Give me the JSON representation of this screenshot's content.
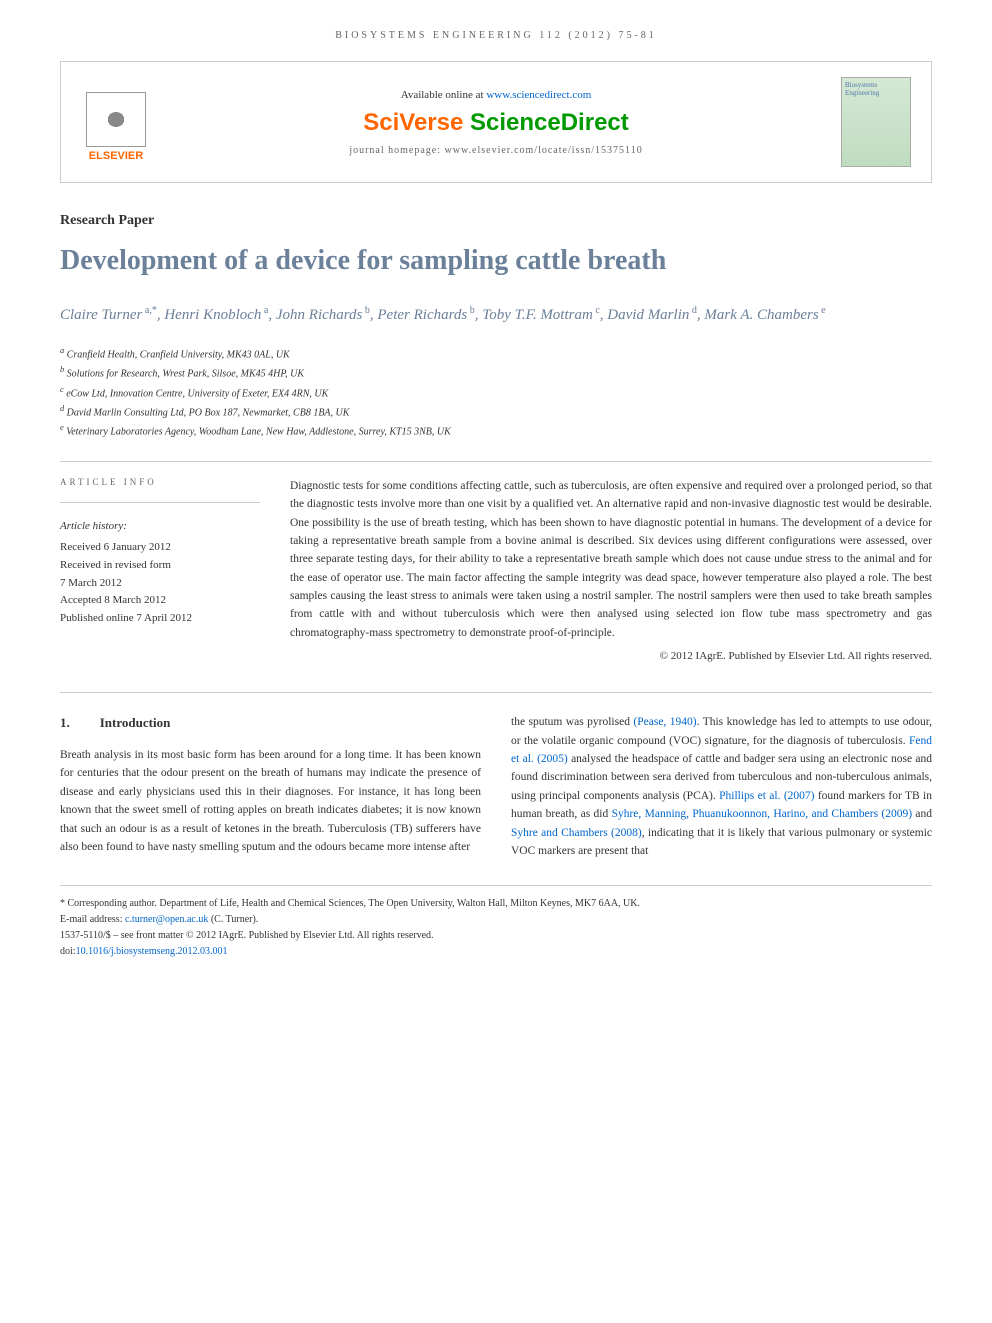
{
  "journal_info": "BIOSYSTEMS ENGINEERING 112 (2012) 75-81",
  "header": {
    "available_text": "Available online at ",
    "sd_url": "www.sciencedirect.com",
    "sciverse": "SciVerse ",
    "sciencedirect": "ScienceDirect",
    "homepage_label": "journal homepage: ",
    "homepage_url": "www.elsevier.com/locate/issn/15375110",
    "elsevier": "ELSEVIER",
    "cover_title": "Biosystems Engineering"
  },
  "article_type": "Research Paper",
  "title": "Development of a device for sampling cattle breath",
  "authors_html": "Claire Turner<sup> a,*</sup>, Henri Knobloch<sup> a</sup>, John Richards<sup> b</sup>, Peter Richards<sup> b</sup>, Toby T.F. Mottram<sup> c</sup>, David Marlin<sup> d</sup>, Mark A. Chambers<sup> e</sup>",
  "affiliations": [
    "a Cranfield Health, Cranfield University, MK43 0AL, UK",
    "b Solutions for Research, Wrest Park, Silsoe, MK45 4HP, UK",
    "c eCow Ltd, Innovation Centre, University of Exeter, EX4 4RN, UK",
    "d David Marlin Consulting Ltd, PO Box 187, Newmarket, CB8 1BA, UK",
    "e Veterinary Laboratories Agency, Woodham Lane, New Haw, Addlestone, Surrey, KT15 3NB, UK"
  ],
  "info_heading": "ARTICLE INFO",
  "history": {
    "title": "Article history:",
    "lines": [
      "Received 6 January 2012",
      "Received in revised form",
      "7 March 2012",
      "Accepted 8 March 2012",
      "Published online 7 April 2012"
    ]
  },
  "abstract": "Diagnostic tests for some conditions affecting cattle, such as tuberculosis, are often expensive and required over a prolonged period, so that the diagnostic tests involve more than one visit by a qualified vet. An alternative rapid and non-invasive diagnostic test would be desirable. One possibility is the use of breath testing, which has been shown to have diagnostic potential in humans. The development of a device for taking a representative breath sample from a bovine animal is described. Six devices using different configurations were assessed, over three separate testing days, for their ability to take a representative breath sample which does not cause undue stress to the animal and for the ease of operator use. The main factor affecting the sample integrity was dead space, however temperature also played a role. The best samples causing the least stress to animals were taken using a nostril sampler. The nostril samplers were then used to take breath samples from cattle with and without tuberculosis which were then analysed using selected ion flow tube mass spectrometry and gas chromatography-mass spectrometry to demonstrate proof-of-principle.",
  "copyright": "© 2012 IAgrE. Published by Elsevier Ltd. All rights reserved.",
  "section1": {
    "num": "1.",
    "title": "Introduction"
  },
  "col1_text": "Breath analysis in its most basic form has been around for a long time. It has been known for centuries that the odour present on the breath of humans may indicate the presence of disease and early physicians used this in their diagnoses. For instance, it has long been known that the sweet smell of rotting apples on breath indicates diabetes; it is now known that such an odour is as a result of ketones in the breath. Tuberculosis (TB) sufferers have also been found to have nasty smelling sputum and the odours became more intense after",
  "col2_pre": "the sputum was pyrolised ",
  "col2_cite1": "(Pease, 1940)",
  "col2_mid1": ". This knowledge has led to attempts to use odour, or the volatile organic compound (VOC) signature, for the diagnosis of tuberculosis. ",
  "col2_cite2": "Fend et al. (2005)",
  "col2_mid2": " analysed the headspace of cattle and badger sera using an electronic nose and found discrimination between sera derived from tuberculous and non-tuberculous animals, using principal components analysis (PCA). ",
  "col2_cite3": "Phillips et al. (2007)",
  "col2_mid3": " found markers for TB in human breath, as did ",
  "col2_cite4": "Syhre, Manning, Phuanukoonnon, Harino, and Chambers (2009)",
  "col2_mid4": " and ",
  "col2_cite5": "Syhre and Chambers (2008)",
  "col2_post": ", indicating that it is likely that various pulmonary or systemic VOC markers are present that",
  "footnotes": {
    "corresponding": "* Corresponding author. Department of Life, Health and Chemical Sciences, The Open University, Walton Hall, Milton Keynes, MK7 6AA, UK.",
    "email_label": "E-mail address: ",
    "email": "c.turner@open.ac.uk",
    "email_suffix": " (C. Turner).",
    "issn": "1537-5110/$ – see front matter © 2012 IAgrE. Published by Elsevier Ltd. All rights reserved.",
    "doi_label": "doi:",
    "doi": "10.1016/j.biosystemseng.2012.03.001"
  },
  "colors": {
    "title_color": "#6b8099",
    "link_color": "#0066cc",
    "elsevier_orange": "#ff6600",
    "sciverse_green": "#009900",
    "text": "#333333",
    "muted": "#666666",
    "border": "#cccccc"
  }
}
